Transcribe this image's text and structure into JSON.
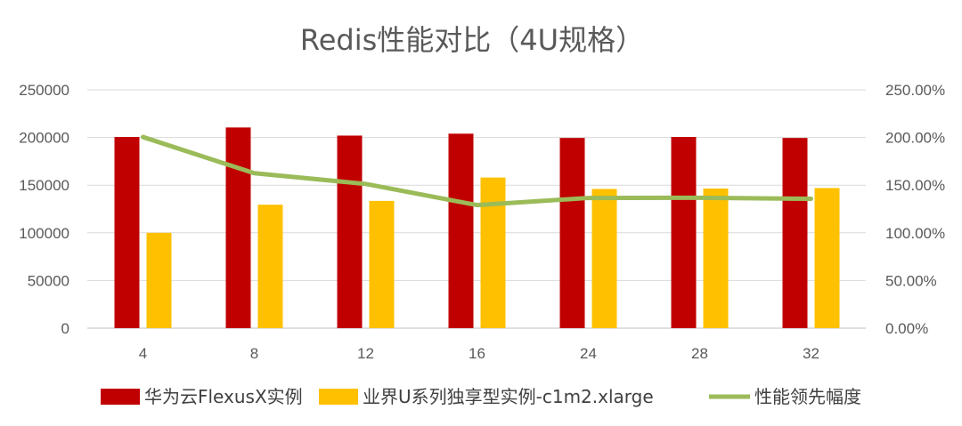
{
  "chart_data": {
    "type": "bar",
    "title": "Redis性能对比（4U规格）",
    "categories": [
      "4",
      "8",
      "12",
      "16",
      "24",
      "28",
      "32"
    ],
    "y_left": {
      "ticks": [
        "0",
        "50000",
        "100000",
        "150000",
        "200000",
        "250000"
      ],
      "ylim": [
        0,
        250000
      ]
    },
    "y_right": {
      "ticks": [
        "0.00%",
        "50.00%",
        "100.00%",
        "150.00%",
        "200.00%",
        "250.00%"
      ],
      "ylim": [
        0,
        250
      ]
    },
    "series": [
      {
        "name": "华为云FlexusX实例",
        "type": "bar",
        "axis": "left",
        "color": "#c00000",
        "values": [
          200500,
          210500,
          202000,
          204000,
          199500,
          200500,
          199500
        ]
      },
      {
        "name": "业界U系列独享型实例-c1m2.xlarge",
        "type": "bar",
        "axis": "left",
        "color": "#ffc000",
        "values": [
          100000,
          129500,
          133500,
          158000,
          146000,
          146500,
          147000
        ]
      },
      {
        "name": "性能领先幅度",
        "type": "line",
        "axis": "right",
        "color": "#9bbb59",
        "values": [
          200.5,
          162.5,
          151.3,
          129.1,
          136.6,
          136.8,
          135.7
        ]
      }
    ],
    "grid": true,
    "legend_position": "bottom"
  }
}
